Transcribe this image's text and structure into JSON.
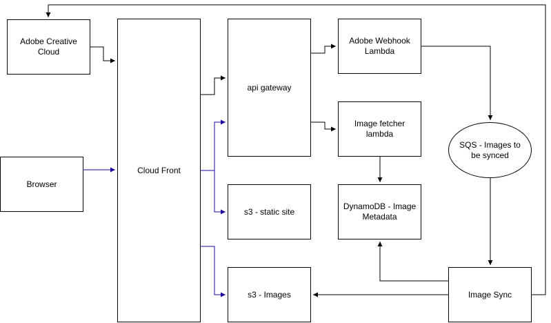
{
  "colors": {
    "default_edge": "#000000",
    "accent_edge": "#1a0aa0",
    "node_border": "#000000",
    "background": "#ffffff"
  },
  "nodes": {
    "adobe_cc": "Adobe Creative Cloud",
    "browser": "Browser",
    "cloudfront": "Cloud Front",
    "api_gateway": "api gateway",
    "s3_static": "s3 - static site",
    "s3_images": "s3 - Images",
    "adobe_webhook": "Adobe Webhook Lambda",
    "image_fetcher": "Image fetcher lambda",
    "dynamodb": "DynamoDB - Image Metadata",
    "sqs": "SQS - Images to be synced",
    "image_sync": "Image Sync"
  },
  "edges": [
    {
      "from": "adobe_cc",
      "to": "cloudfront",
      "color": "default"
    },
    {
      "from": "browser",
      "to": "cloudfront",
      "color": "accent"
    },
    {
      "from": "cloudfront",
      "to": "api_gateway",
      "color": "default"
    },
    {
      "from": "cloudfront",
      "to": "api_gateway",
      "color": "accent"
    },
    {
      "from": "cloudfront",
      "to": "s3_static",
      "color": "accent"
    },
    {
      "from": "cloudfront",
      "to": "s3_images",
      "color": "accent"
    },
    {
      "from": "api_gateway",
      "to": "adobe_webhook",
      "color": "default"
    },
    {
      "from": "api_gateway",
      "to": "image_fetcher",
      "color": "default"
    },
    {
      "from": "adobe_webhook",
      "to": "sqs",
      "color": "default"
    },
    {
      "from": "image_fetcher",
      "to": "dynamodb",
      "color": "default"
    },
    {
      "from": "sqs",
      "to": "image_sync",
      "color": "default"
    },
    {
      "from": "image_sync",
      "to": "dynamodb",
      "color": "default"
    },
    {
      "from": "image_sync",
      "to": "s3_images",
      "color": "default"
    },
    {
      "from": "image_sync",
      "to": "adobe_cc",
      "color": "default"
    }
  ]
}
